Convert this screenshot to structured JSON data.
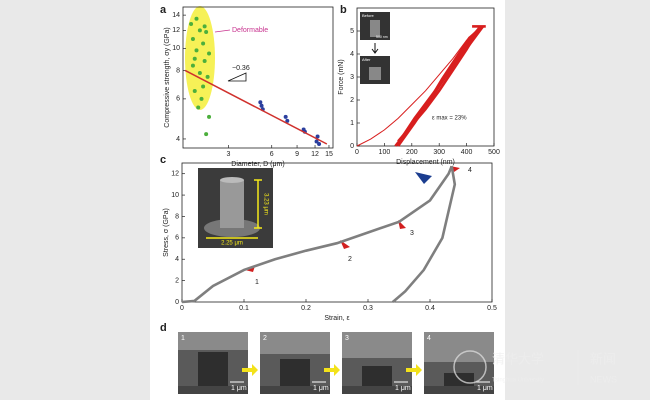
{
  "chart_data": [
    {
      "type": "scatter",
      "label": "a",
      "ylabel": "Compressive strength, σy (GPa)",
      "xlabel": "Diameter, D (μm)",
      "xscale": "log",
      "yscale": "log",
      "xlim": [
        1.45,
        16
      ],
      "ylim": [
        3.65,
        15.2
      ],
      "xticks": [
        3,
        6,
        9,
        12,
        15
      ],
      "yticks": [
        4,
        6,
        8,
        10,
        12,
        14
      ],
      "annotations": [
        "Deformable",
        "−0.36"
      ],
      "series": [
        {
          "color": "#4caf3c",
          "x": [
            1.65,
            1.7,
            1.7,
            1.75,
            1.8,
            1.8,
            1.85,
            1.9,
            1.9,
            2.0,
            2.0,
            2.05,
            2.1,
            2.1,
            2.15,
            2.2,
            2.2,
            1.75,
            1.95,
            2.05
          ],
          "values": [
            12.8,
            11,
            8.4,
            6.5,
            13.5,
            9.8,
            5.5,
            12,
            7.8,
            10.5,
            6.8,
            8.8,
            11.8,
            4.2,
            7.5,
            9.5,
            5,
            9,
            6,
            12.5
          ]
        },
        {
          "color": "#2b3f9e",
          "x": [
            5,
            5.1,
            5.2,
            7.5,
            7.7,
            10,
            10.2,
            12.3,
            12.5,
            12.8
          ],
          "values": [
            5.8,
            5.6,
            5.4,
            5.0,
            4.8,
            4.4,
            4.3,
            3.9,
            4.1,
            3.8
          ]
        },
        {
          "color": "#d0312d",
          "line": true,
          "x": [
            1.5,
            14.5
          ],
          "values": [
            8.0,
            3.8
          ]
        }
      ]
    },
    {
      "type": "line",
      "label": "b",
      "ylabel": "Force (mN)",
      "xlabel": "Displacement (nm)",
      "xlim": [
        0,
        500
      ],
      "ylim": [
        0,
        6
      ],
      "xticks": [
        0,
        100,
        200,
        300,
        400,
        500
      ],
      "yticks": [
        0,
        1,
        2,
        3,
        4,
        5
      ],
      "annotations": [
        "ε max = 23%"
      ],
      "insets": [
        "Before",
        "After"
      ],
      "scale": "500 nm",
      "series": [
        {
          "color": "#d81e1e",
          "x": [
            0,
            50,
            100,
            150,
            200,
            250,
            300,
            350,
            400,
            450
          ],
          "values": [
            0,
            0.3,
            0.7,
            1.2,
            1.8,
            2.4,
            3.1,
            3.8,
            4.6,
            5.2
          ]
        },
        {
          "color": "#d81e1e",
          "x": [
            450,
            400,
            350,
            300,
            250,
            200,
            150
          ],
          "values": [
            5.2,
            4.2,
            3.3,
            2.4,
            1.6,
            0.9,
            0.2
          ]
        },
        {
          "color": "#d81e1e",
          "x": [
            140,
            200,
            250,
            300,
            350,
            400,
            450
          ],
          "values": [
            0,
            0.9,
            1.7,
            2.6,
            3.5,
            4.4,
            5.2
          ]
        },
        {
          "color": "#d81e1e",
          "x": [
            460,
            410,
            360,
            310,
            260,
            210,
            160
          ],
          "values": [
            5.2,
            4.4,
            3.6,
            2.8,
            2.0,
            1.2,
            0.3
          ]
        },
        {
          "color": "#d81e1e",
          "x": [
            150,
            210,
            260,
            310,
            360,
            410,
            460
          ],
          "values": [
            0,
            1.0,
            1.9,
            2.9,
            3.8,
            4.7,
            5.2
          ]
        },
        {
          "color": "#d81e1e",
          "x": [
            420,
            470
          ],
          "values": [
            5.2,
            5.2
          ]
        }
      ]
    },
    {
      "type": "line",
      "label": "c",
      "ylabel": "Stress, σ (GPa)",
      "xlabel": "Strain, ε",
      "xlim": [
        0,
        0.5
      ],
      "ylim": [
        0,
        13
      ],
      "xticks": [
        0,
        0.1,
        0.2,
        0.3,
        0.4,
        0.5
      ],
      "yticks": [
        0,
        2,
        4,
        6,
        8,
        10,
        12
      ],
      "point_labels": [
        "1",
        "2",
        "3",
        "4"
      ],
      "insets": [
        "3.23 μm",
        "2.25 μm"
      ],
      "series": [
        {
          "color": "#7f7f7f",
          "x": [
            0,
            0.02,
            0.05,
            0.1,
            0.15,
            0.2,
            0.25,
            0.3,
            0.35,
            0.4,
            0.43,
            0.435
          ],
          "values": [
            0,
            0.1,
            1.5,
            3,
            4,
            4.8,
            5.5,
            6.5,
            7.5,
            9.5,
            12,
            12.7
          ]
        },
        {
          "color": "#7f7f7f",
          "x": [
            0.435,
            0.44,
            0.42,
            0.39,
            0.36,
            0.34
          ],
          "values": [
            12.7,
            11,
            6,
            3,
            1,
            0
          ]
        }
      ]
    }
  ],
  "panel_d": {
    "label": "d",
    "frames": [
      {
        "label": "1",
        "scale": "1 μm"
      },
      {
        "label": "2",
        "scale": "1 μm"
      },
      {
        "label": "3",
        "scale": "1 μm"
      },
      {
        "label": "4",
        "scale": "1 μm"
      }
    ]
  },
  "watermark": {
    "name_cn": "清华大学",
    "name_en": "Tsinghua University",
    "section_cn": "新闻",
    "section_en": "NEWS"
  }
}
